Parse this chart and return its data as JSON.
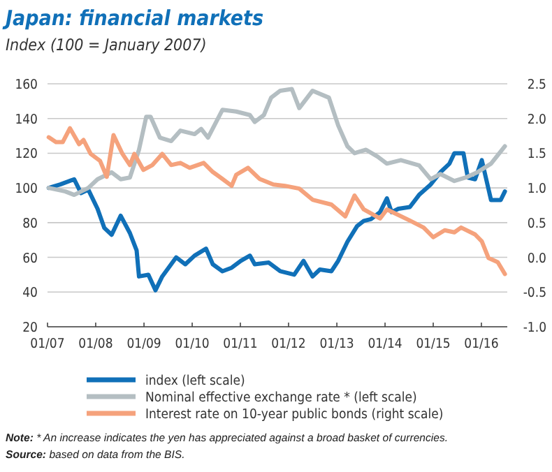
{
  "chart_data": {
    "type": "line",
    "title": "Japan: financial markets",
    "subtitle": "Index (100 = January 2007)",
    "xlim": [
      "2007-01-01",
      "2016-07-15"
    ],
    "xticks": [
      {
        "value": "2007-01-01",
        "label": "01/07"
      },
      {
        "value": "2008-01-01",
        "label": "01/08"
      },
      {
        "value": "2009-01-01",
        "label": "01/09"
      },
      {
        "value": "2010-01-01",
        "label": "01/10"
      },
      {
        "value": "2011-01-01",
        "label": "01/11"
      },
      {
        "value": "2012-01-01",
        "label": "01/12"
      },
      {
        "value": "2013-01-01",
        "label": "01/13"
      },
      {
        "value": "2014-01-01",
        "label": "01/14"
      },
      {
        "value": "2015-01-01",
        "label": "01/15"
      },
      {
        "value": "2016-01-01",
        "label": "01/16"
      }
    ],
    "ylim": [
      20,
      160
    ],
    "yticks": [
      20,
      40,
      60,
      80,
      100,
      120,
      140,
      160
    ],
    "y2lim": [
      -1,
      2.5
    ],
    "y2ticks": [
      {
        "value": -1,
        "label": "-1.0"
      },
      -0.5,
      {
        "value": 0,
        "label": "0.0"
      },
      0.5,
      {
        "value": 1,
        "label": "1.0"
      },
      1.5,
      {
        "value": 2,
        "label": "2.0"
      },
      2.5
    ],
    "grid": "y",
    "legend": "bottom",
    "line_style": "solid",
    "marker": "none",
    "annotations": [
      "Note: * An increase indicates the yen has appreciated against a broad basket of currencies.",
      "Source: based on data from the BIS."
    ],
    "series": [
      {
        "name": "index (left scale)",
        "color": "#1070b8",
        "x": [
          "2007-01-10",
          "2007-04-08",
          "2007-07-22",
          "2007-09-12",
          "2007-11-06",
          "2008-01-15",
          "2008-03-06",
          "2008-05-01",
          "2008-07-08",
          "2008-09-16",
          "2008-11-06",
          "2008-11-24",
          "2009-02-03",
          "2009-03-29",
          "2009-05-19",
          "2009-09-02",
          "2009-11-10",
          "2010-01-19",
          "2010-04-16",
          "2010-06-06",
          "2010-08-18",
          "2010-10-27",
          "2011-01-04",
          "2011-03-14",
          "2011-04-20",
          "2011-08-04",
          "2011-10-30",
          "2012-02-13",
          "2012-04-23",
          "2012-07-01",
          "2012-08-25",
          "2012-11-21",
          "2013-01-11",
          "2013-03-22",
          "2013-06-03",
          "2013-07-24",
          "2013-09-16",
          "2013-11-24",
          "2014-01-15",
          "2014-02-20",
          "2014-04-12",
          "2014-07-08",
          "2014-09-16",
          "2014-12-13",
          "2015-02-24",
          "2015-05-04",
          "2015-06-10",
          "2015-08-18",
          "2015-09-20",
          "2015-11-14",
          "2016-01-04",
          "2016-03-14",
          "2016-05-26",
          "2016-06-27"
        ],
        "values": [
          100,
          102,
          105,
          97,
          99,
          88,
          77,
          73,
          84,
          74,
          64,
          49,
          50,
          41,
          49,
          60,
          56,
          61,
          65,
          56,
          52,
          54,
          58,
          61,
          56,
          57,
          52,
          50,
          58,
          49,
          53,
          52,
          58,
          69,
          78,
          81,
          82,
          86,
          94,
          86,
          88,
          89,
          96,
          102,
          109,
          114,
          120,
          120,
          106,
          105,
          116,
          93,
          93,
          98
        ]
      },
      {
        "name": "Nominal effective exchange rate * (left scale)",
        "color": "#b4bec2",
        "x": [
          "2007-01-10",
          "2007-05-15",
          "2007-07-22",
          "2007-11-06",
          "2008-01-15",
          "2008-05-01",
          "2008-07-08",
          "2008-09-16",
          "2008-11-24",
          "2009-01-18",
          "2009-02-20",
          "2009-05-01",
          "2009-07-26",
          "2009-10-04",
          "2010-01-19",
          "2010-03-10",
          "2010-05-01",
          "2010-08-18",
          "2010-12-01",
          "2011-03-14",
          "2011-04-20",
          "2011-06-28",
          "2011-08-22",
          "2011-10-30",
          "2012-01-26",
          "2012-03-22",
          "2012-07-01",
          "2012-11-02",
          "2013-01-11",
          "2013-03-22",
          "2013-05-15",
          "2013-08-10",
          "2013-11-06",
          "2014-01-15",
          "2014-05-01",
          "2014-09-16",
          "2014-12-13",
          "2015-02-24",
          "2015-06-10",
          "2015-09-05",
          "2015-12-01",
          "2016-03-14",
          "2016-06-27"
        ],
        "values": [
          100,
          98,
          96,
          100,
          105,
          109,
          105,
          106,
          122,
          141,
          141,
          129,
          127,
          133,
          131,
          134,
          129,
          145,
          144,
          142,
          138,
          142,
          152,
          156,
          157,
          146,
          156,
          152,
          136,
          124,
          120,
          122,
          118,
          114,
          116,
          113,
          105,
          108,
          104,
          106,
          109,
          114,
          124
        ]
      },
      {
        "name": "Interest rate on 10-year public bonds (right scale)",
        "color": "#f5a27c",
        "axis": "y2",
        "x": [
          "2007-01-10",
          "2007-03-06",
          "2007-04-26",
          "2007-06-20",
          "2007-08-28",
          "2007-10-01",
          "2007-11-24",
          "2008-02-03",
          "2008-03-25",
          "2008-05-15",
          "2008-07-22",
          "2008-09-16",
          "2008-10-20",
          "2008-12-27",
          "2009-03-06",
          "2009-05-19",
          "2009-07-26",
          "2009-10-04",
          "2009-12-13",
          "2010-03-29",
          "2010-06-06",
          "2010-08-18",
          "2010-10-27",
          "2010-12-01",
          "2011-02-28",
          "2011-05-26",
          "2011-09-08",
          "2011-12-05",
          "2012-03-22",
          "2012-07-01",
          "2012-11-21",
          "2013-03-06",
          "2013-05-15",
          "2013-07-24",
          "2013-11-24",
          "2014-01-15",
          "2014-07-08",
          "2014-10-20",
          "2015-01-01",
          "2015-03-29",
          "2015-06-10",
          "2015-07-31",
          "2015-11-14",
          "2016-01-04",
          "2016-02-24",
          "2016-05-04",
          "2016-06-27"
        ],
        "values": [
          1.73,
          1.66,
          1.66,
          1.86,
          1.63,
          1.69,
          1.49,
          1.39,
          1.16,
          1.76,
          1.49,
          1.33,
          1.49,
          1.26,
          1.33,
          1.49,
          1.33,
          1.36,
          1.29,
          1.36,
          1.23,
          1.13,
          1.03,
          1.19,
          1.29,
          1.13,
          1.05,
          1.03,
          0.99,
          0.83,
          0.76,
          0.59,
          0.89,
          0.69,
          0.56,
          0.69,
          0.53,
          0.43,
          0.29,
          0.39,
          0.36,
          0.43,
          0.33,
          0.23,
          -0.01,
          -0.07,
          -0.24
        ]
      }
    ]
  }
}
